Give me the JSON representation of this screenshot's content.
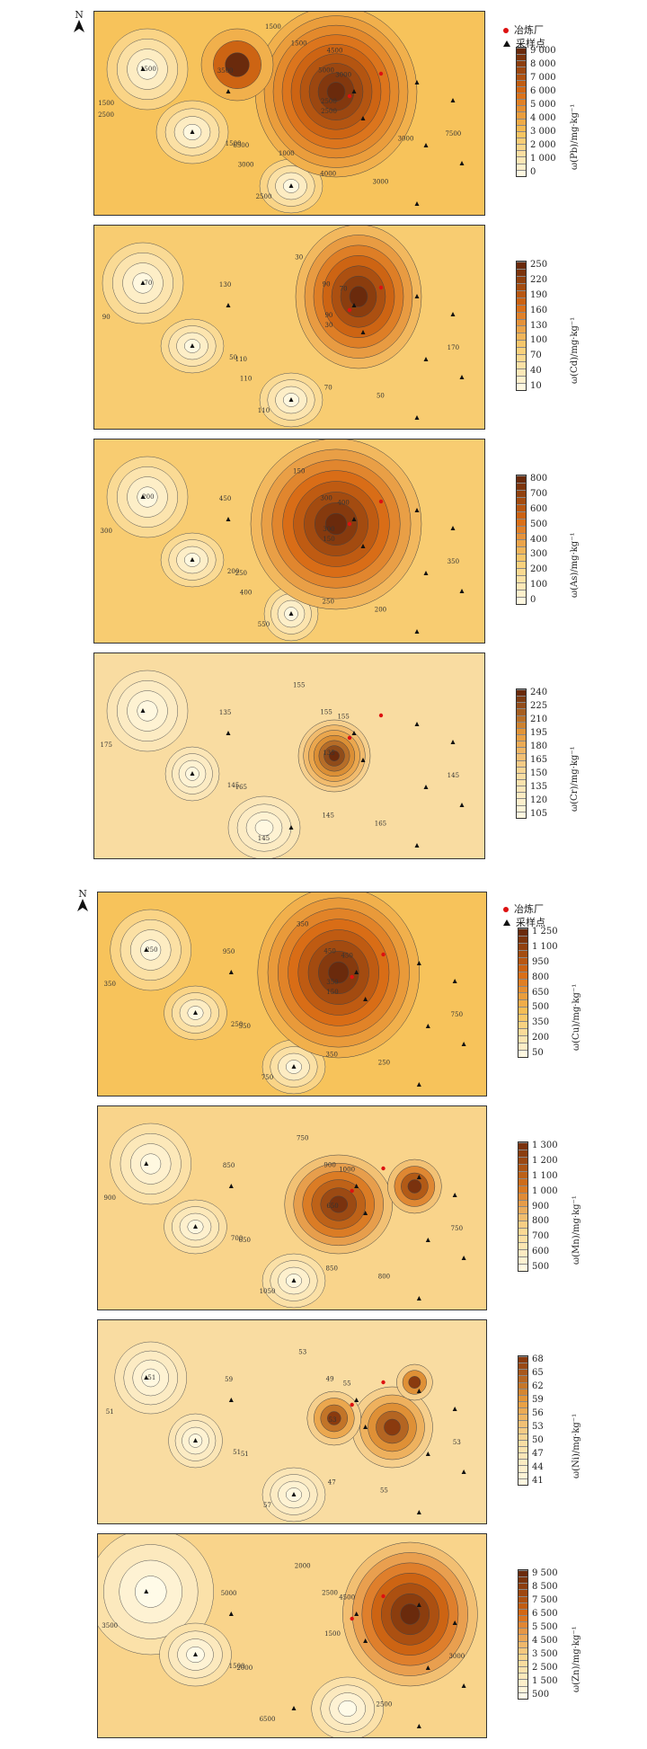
{
  "figure": {
    "compass": "N",
    "legend": {
      "smelter": "冶炼厂",
      "sample": "采样点"
    }
  },
  "panels": [
    {
      "id": "pb",
      "ylabel": "ω(Pb)/mg·kg⁻¹",
      "ticks": [
        "9 000",
        "8 000",
        "7 000",
        "6 000",
        "5 000",
        "4 000",
        "3 000",
        "2 000",
        "1 000",
        "0"
      ],
      "palette": [
        "#fff8e0",
        "#f7c25a",
        "#d86a14",
        "#6a2a0c"
      ],
      "labels": [
        "2500",
        "1500",
        "1500",
        "3000",
        "1500",
        "3000",
        "2500",
        "3500",
        "7500",
        "6500",
        "5000",
        "4000",
        "1500",
        "2500",
        "3000",
        "1500",
        "3000",
        "2500",
        "4500",
        "1000"
      ]
    },
    {
      "id": "cd",
      "ylabel": "ω(Cd)/mg·kg⁻¹",
      "ticks": [
        "250",
        "220",
        "190",
        "160",
        "130",
        "100",
        "70",
        "40",
        "10"
      ],
      "palette": [
        "#fff8e0",
        "#f8cc70",
        "#d86a14",
        "#6a2a0c"
      ],
      "labels": [
        "30",
        "50",
        "30",
        "50",
        "90",
        "70",
        "110",
        "130",
        "170",
        "110",
        "90",
        "70",
        "70",
        "90",
        "110"
      ]
    },
    {
      "id": "as",
      "ylabel": "ω(As)/mg·kg⁻¹",
      "ticks": [
        "800",
        "700",
        "600",
        "500",
        "400",
        "300",
        "200",
        "100",
        "0"
      ],
      "palette": [
        "#fff8e0",
        "#f8cc70",
        "#d86a14",
        "#6a2a0c"
      ],
      "labels": [
        "150",
        "200",
        "150",
        "200",
        "300",
        "400",
        "550",
        "450",
        "350",
        "250",
        "300",
        "250",
        "200",
        "300",
        "400"
      ]
    },
    {
      "id": "cr",
      "ylabel": "ω(Cr)/mg·kg⁻¹",
      "ticks": [
        "240",
        "225",
        "210",
        "195",
        "180",
        "165",
        "150",
        "135",
        "120",
        "105"
      ],
      "palette": [
        "#fff8e0",
        "#f9dca0",
        "#e89a3a",
        "#6a2a0c"
      ],
      "labels": [
        "135",
        "145",
        "155",
        "165",
        "175",
        "155",
        "145",
        "135",
        "145",
        "165",
        "155",
        "145"
      ]
    },
    {
      "id": "cu",
      "ylabel": "ω(Cu)/mg·kg⁻¹",
      "ticks": [
        "1 250",
        "1 100",
        "950",
        "800",
        "650",
        "500",
        "350",
        "200",
        "50"
      ],
      "palette": [
        "#fff8e0",
        "#f7c25a",
        "#d86a14",
        "#6a2a0c"
      ],
      "labels": [
        "150",
        "250",
        "350",
        "250",
        "350",
        "450",
        "750",
        "950",
        "750",
        "550",
        "450",
        "350",
        "250",
        "350"
      ]
    },
    {
      "id": "mn",
      "ylabel": "ω(Mn)/mg·kg⁻¹",
      "ticks": [
        "1 300",
        "1 200",
        "1 100",
        "1 000",
        "900",
        "800",
        "700",
        "600",
        "500"
      ],
      "palette": [
        "#fff8e0",
        "#f9d48a",
        "#d8741c",
        "#7a320e"
      ],
      "labels": [
        "650",
        "700",
        "750",
        "800",
        "900",
        "1000",
        "1050",
        "850",
        "750",
        "650",
        "900",
        "850"
      ]
    },
    {
      "id": "ni",
      "ylabel": "ω(Ni)/mg·kg⁻¹",
      "ticks": [
        "68",
        "65",
        "62",
        "59",
        "56",
        "53",
        "50",
        "47",
        "44",
        "41"
      ],
      "palette": [
        "#fff8e0",
        "#f9dca0",
        "#e89a3a",
        "#8a3a0e"
      ],
      "labels": [
        "53",
        "51",
        "53",
        "55",
        "51",
        "55",
        "57",
        "59",
        "53",
        "51",
        "49",
        "47",
        "51"
      ]
    },
    {
      "id": "zn",
      "ylabel": "ω(Zn)/mg·kg⁻¹",
      "ticks": [
        "9 500",
        "8 500",
        "7 500",
        "6 500",
        "5 500",
        "4 500",
        "3 500",
        "2 500",
        "1 500",
        "500"
      ],
      "palette": [
        "#fffbe8",
        "#f9d48a",
        "#d86a14",
        "#6a2a0c"
      ],
      "labels": [
        "1500",
        "1500",
        "2000",
        "2500",
        "3500",
        "4500",
        "6500",
        "5000",
        "3000",
        "2000",
        "2500"
      ]
    }
  ]
}
